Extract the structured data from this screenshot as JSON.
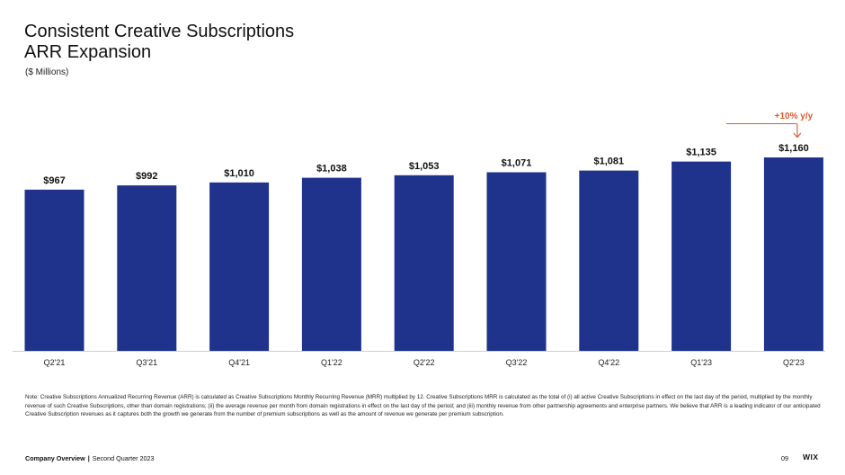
{
  "slide": {
    "title_line1": "Consistent Creative Subscriptions",
    "title_line2": "ARR Expansion",
    "subtitle": "($ Millions)"
  },
  "colors": {
    "bar": "#1f328c",
    "annotation": "#e0582b",
    "axis": "#cfcfcf"
  },
  "chart_data": {
    "type": "bar",
    "categories": [
      "Q2'21",
      "Q3'21",
      "Q4'21",
      "Q1'22",
      "Q2'22",
      "Q3'22",
      "Q4'22",
      "Q1'23",
      "Q2'23"
    ],
    "values": [
      967,
      992,
      1010,
      1038,
      1053,
      1071,
      1081,
      1135,
      1160
    ],
    "data_labels": [
      "$967",
      "$992",
      "$1,010",
      "$1,038",
      "$1,053",
      "$1,071",
      "$1,081",
      "$1,135",
      "$1,160"
    ],
    "title": "",
    "xlabel": "",
    "ylabel": "",
    "ylim": [
      0,
      1160
    ],
    "grid": false,
    "annotation": {
      "text": "+10% y/y",
      "category": "Q2'23",
      "arrow": "down"
    }
  },
  "note": "Note: Creative Subscriptions Annualized Recurring Revenue (ARR) is calculated as Creative Subscriptions Monthly Recurring Revenue (MRR) multiplied by 12. Creative Subscriptions MRR is calculated as the total of (i) all active Creative Subscriptions in effect on the last day of the period, multiplied by the monthly revenue of such Creative Subscriptions, other than domain registrations; (ii) the average revenue per month from domain registrations in effect on the last day of the period; and (iii) monthly revenue from other partnership agreements and enterprise partners. We believe that ARR is a leading indicator of our anticipated Creative Subscription revenues as it captures both the growth we generate from the number of premium subscriptions as well as the amount of revenue we generate per premium subscription.",
  "footer": {
    "section": "Company Overview",
    "separator": "|",
    "period": "Second Quarter 2023",
    "page": "09",
    "brand": "WIX"
  }
}
